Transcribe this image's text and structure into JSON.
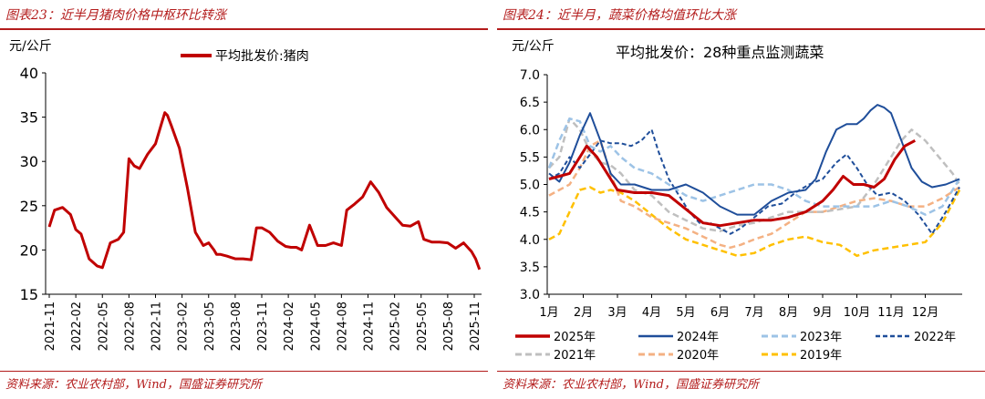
{
  "left": {
    "title": "图表23：近半月猪肉价格中枢环比转涨",
    "source": "资料来源：农业农村部，Wind，国盛证券研究所",
    "unit": "元/公斤"
  },
  "right": {
    "title": "图表24：近半月，蔬菜价格均值环比大涨",
    "source": "资料来源：农业农村部，Wind，国盛证券研究所",
    "unit": "元/公斤"
  },
  "colors": {
    "brand": "#b31b1b",
    "s2025": "#c00000",
    "s2024": "#1f4e9a",
    "s2023": "#9dc3e6",
    "s2022": "#1f4e9a",
    "s2021": "#bfbfbf",
    "s2020": "#f4b183",
    "s2019": "#ffc000"
  },
  "chart_data": [
    {
      "type": "line",
      "title": "平均批发价:猪肉",
      "ylabel": "元/公斤",
      "ylim": [
        15,
        40
      ],
      "yticks": [
        15,
        20,
        25,
        30,
        35,
        40
      ],
      "x_categories": [
        "2021-11",
        "2022-02",
        "2022-05",
        "2022-08",
        "2022-11",
        "2023-02",
        "2023-05",
        "2023-08",
        "2023-11",
        "2024-02",
        "2024-05",
        "2024-08",
        "2024-11",
        "2025-02",
        "2025-05",
        "2025-08",
        "2025-11"
      ],
      "series": [
        {
          "name": "平均批发价:猪肉",
          "color": "#c00000",
          "x": [
            0,
            0.2,
            0.5,
            0.8,
            1.0,
            1.2,
            1.5,
            1.8,
            2.0,
            2.3,
            2.6,
            2.8,
            3.0,
            3.2,
            3.4,
            3.7,
            4.0,
            4.2,
            4.35,
            4.45,
            4.6,
            4.9,
            5.2,
            5.5,
            5.8,
            6.0,
            6.2,
            6.3,
            6.45,
            6.7,
            7.0,
            7.3,
            7.6,
            7.8,
            8.0,
            8.3,
            8.6,
            8.9,
            9.1,
            9.3,
            9.5,
            9.8,
            10.1,
            10.4,
            10.7,
            11.0,
            11.2,
            11.5,
            11.8,
            12.1,
            12.4,
            12.7,
            13.0,
            13.3,
            13.6,
            13.9,
            14.1,
            14.4,
            14.7,
            15.0,
            15.3,
            15.6,
            15.9,
            16.05,
            16.2
          ],
          "y": [
            22.6,
            24.5,
            24.8,
            24.0,
            22.3,
            21.8,
            19.0,
            18.2,
            18.0,
            20.8,
            21.2,
            22.0,
            30.3,
            29.5,
            29.2,
            30.8,
            32.0,
            34.0,
            35.5,
            35.2,
            34.0,
            31.5,
            27.0,
            22.0,
            20.5,
            20.8,
            20.0,
            19.5,
            19.5,
            19.3,
            19.0,
            19.0,
            18.9,
            22.5,
            22.5,
            22.0,
            21.0,
            20.4,
            20.3,
            20.3,
            20.0,
            22.8,
            20.5,
            20.5,
            20.8,
            20.5,
            24.5,
            25.2,
            26.0,
            27.7,
            26.5,
            24.8,
            23.8,
            22.8,
            22.7,
            23.2,
            21.2,
            20.9,
            20.9,
            20.8,
            20.2,
            20.8,
            19.8,
            19.0,
            17.8
          ]
        }
      ]
    },
    {
      "type": "line",
      "title": "平均批发价：28种重点监测蔬菜",
      "ylabel": "元/公斤",
      "ylim": [
        3.0,
        7.0
      ],
      "yticks": [
        3.0,
        3.5,
        4.0,
        4.5,
        5.0,
        5.5,
        6.0,
        6.5,
        7.0
      ],
      "x_categories": [
        "1月",
        "2月",
        "3月",
        "4月",
        "5月",
        "6月",
        "7月",
        "8月",
        "9月",
        "10月",
        "11月",
        "12月"
      ],
      "series": [
        {
          "name": "2025年",
          "color": "#c00000",
          "dash": "",
          "width": 3,
          "x": [
            0,
            0.3,
            0.6,
            0.9,
            1.1,
            1.4,
            1.7,
            2.0,
            2.5,
            3.0,
            3.5,
            4.0,
            4.5,
            5.0,
            5.5,
            6.0,
            6.5,
            7.0,
            7.5,
            8.0,
            8.3,
            8.6,
            8.9,
            9.2,
            9.5,
            9.8,
            10.1,
            10.4,
            10.7
          ],
          "y": [
            5.1,
            5.15,
            5.2,
            5.5,
            5.7,
            5.5,
            5.2,
            4.9,
            4.85,
            4.85,
            4.8,
            4.55,
            4.3,
            4.25,
            4.3,
            4.35,
            4.35,
            4.4,
            4.5,
            4.7,
            4.9,
            5.15,
            5.0,
            5.0,
            4.95,
            5.1,
            5.45,
            5.7,
            5.8
          ]
        },
        {
          "name": "2024年",
          "color": "#1f4e9a",
          "dash": "",
          "width": 2,
          "x": [
            0,
            0.3,
            0.6,
            0.9,
            1.2,
            1.5,
            1.8,
            2.1,
            2.5,
            3.0,
            3.5,
            4.0,
            4.5,
            5.0,
            5.5,
            6.0,
            6.5,
            7.0,
            7.5,
            7.8,
            8.1,
            8.4,
            8.7,
            9.0,
            9.2,
            9.4,
            9.6,
            9.8,
            10.0,
            10.3,
            10.6,
            10.9,
            11.2,
            11.6,
            12.0
          ],
          "y": [
            5.2,
            5.05,
            5.4,
            5.9,
            6.3,
            5.8,
            5.2,
            5.0,
            5.0,
            4.9,
            4.9,
            5.0,
            4.85,
            4.6,
            4.45,
            4.45,
            4.7,
            4.85,
            4.9,
            5.1,
            5.6,
            6.0,
            6.1,
            6.1,
            6.2,
            6.35,
            6.45,
            6.4,
            6.3,
            5.8,
            5.3,
            5.05,
            4.95,
            5.0,
            5.1
          ]
        },
        {
          "name": "2023年",
          "color": "#9dc3e6",
          "dash": "7,4",
          "width": 2.5,
          "x": [
            0,
            0.3,
            0.6,
            0.9,
            1.2,
            1.5,
            1.8,
            2.1,
            2.5,
            3.0,
            3.5,
            4.0,
            4.5,
            5.0,
            5.5,
            6.0,
            6.5,
            7.0,
            7.5,
            8.0,
            8.5,
            9.0,
            9.5,
            10.0,
            10.5,
            11.0,
            11.5,
            12.0
          ],
          "y": [
            5.3,
            5.8,
            6.2,
            6.15,
            5.7,
            5.6,
            5.7,
            5.5,
            5.3,
            5.2,
            5.0,
            4.8,
            4.7,
            4.8,
            4.9,
            5.0,
            5.0,
            4.9,
            4.7,
            4.6,
            4.6,
            4.6,
            4.6,
            4.7,
            4.6,
            4.45,
            4.6,
            5.1
          ]
        },
        {
          "name": "2022年",
          "color": "#1f4e9a",
          "dash": "5,3",
          "width": 2,
          "x": [
            0,
            0.3,
            0.6,
            0.9,
            1.2,
            1.5,
            1.8,
            2.1,
            2.4,
            2.7,
            3.0,
            3.2,
            3.5,
            3.8,
            4.1,
            4.4,
            4.7,
            5.0,
            5.3,
            5.6,
            6.0,
            6.4,
            6.8,
            7.2,
            7.6,
            8.0,
            8.4,
            8.7,
            9.0,
            9.3,
            9.6,
            10.0,
            10.4,
            10.8,
            11.2,
            11.6,
            12.0
          ],
          "y": [
            5.1,
            5.2,
            5.5,
            5.3,
            5.55,
            5.8,
            5.75,
            5.75,
            5.7,
            5.8,
            6.0,
            5.6,
            5.1,
            4.8,
            4.5,
            4.3,
            4.3,
            4.2,
            4.1,
            4.2,
            4.4,
            4.6,
            4.65,
            4.85,
            5.0,
            5.1,
            5.4,
            5.55,
            5.3,
            5.0,
            4.8,
            4.85,
            4.7,
            4.45,
            4.1,
            4.5,
            4.95
          ]
        },
        {
          "name": "2021年",
          "color": "#bfbfbf",
          "dash": "7,4",
          "width": 2.5,
          "x": [
            0,
            0.3,
            0.6,
            0.9,
            1.2,
            1.5,
            1.8,
            2.1,
            2.5,
            3.0,
            3.5,
            4.0,
            4.5,
            5.0,
            5.5,
            6.0,
            6.5,
            7.0,
            7.5,
            8.0,
            8.5,
            9.0,
            9.5,
            10.0,
            10.3,
            10.6,
            11.0,
            11.4,
            11.8,
            12.0
          ],
          "y": [
            5.3,
            5.5,
            6.2,
            6.0,
            5.6,
            5.4,
            5.35,
            5.2,
            4.9,
            4.8,
            4.5,
            4.35,
            4.2,
            4.15,
            4.25,
            4.3,
            4.4,
            4.5,
            4.5,
            4.5,
            4.55,
            4.6,
            5.0,
            5.5,
            5.8,
            6.0,
            5.8,
            5.5,
            5.2,
            5.0
          ]
        },
        {
          "name": "2020年",
          "color": "#f4b183",
          "dash": "7,4",
          "width": 2.5,
          "x": [
            0,
            0.3,
            0.6,
            0.9,
            1.2,
            1.5,
            1.8,
            2.1,
            2.5,
            3.0,
            3.5,
            4.0,
            4.5,
            5.0,
            5.3,
            5.6,
            6.0,
            6.5,
            7.0,
            7.5,
            8.0,
            8.5,
            9.0,
            9.5,
            10.0,
            10.5,
            11.0,
            11.5,
            12.0
          ],
          "y": [
            4.8,
            4.9,
            5.0,
            5.3,
            5.7,
            5.8,
            5.2,
            4.7,
            4.6,
            4.4,
            4.3,
            4.2,
            4.05,
            3.9,
            3.85,
            3.9,
            4.0,
            4.1,
            4.3,
            4.5,
            4.5,
            4.6,
            4.7,
            4.75,
            4.7,
            4.6,
            4.6,
            4.75,
            4.95
          ]
        },
        {
          "name": "2019年",
          "color": "#ffc000",
          "dash": "7,4",
          "width": 2.5,
          "x": [
            0,
            0.3,
            0.6,
            0.9,
            1.2,
            1.5,
            1.8,
            2.1,
            2.5,
            3.0,
            3.5,
            4.0,
            4.5,
            5.0,
            5.5,
            6.0,
            6.5,
            7.0,
            7.5,
            8.0,
            8.5,
            9.0,
            9.5,
            10.0,
            10.5,
            11.0,
            11.5,
            12.0
          ],
          "y": [
            4.0,
            4.1,
            4.5,
            4.9,
            4.95,
            4.85,
            4.9,
            4.85,
            4.7,
            4.45,
            4.2,
            4.0,
            3.9,
            3.8,
            3.7,
            3.75,
            3.9,
            4.0,
            4.05,
            3.95,
            3.9,
            3.7,
            3.8,
            3.85,
            3.9,
            3.95,
            4.3,
            4.9
          ]
        }
      ]
    }
  ]
}
